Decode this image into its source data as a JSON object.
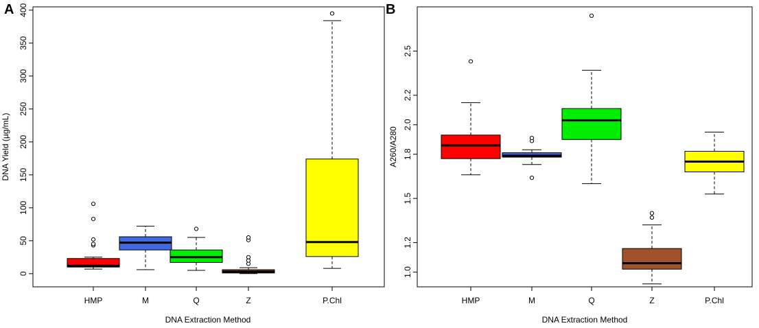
{
  "chart_data": [
    {
      "type": "boxplot",
      "panel_label": "A",
      "xlabel": "DNA Extraction Method",
      "ylabel": "DNA Yield (µg/mL)",
      "ylim": [
        -20,
        405
      ],
      "yticks": [
        0,
        50,
        100,
        150,
        200,
        250,
        300,
        350,
        400
      ],
      "ytick_labels": [
        "0",
        "50",
        "100",
        "150",
        "200",
        "250",
        "300",
        "350",
        "400"
      ],
      "categories": [
        "HMP",
        "M",
        "Q",
        "Z",
        "P.Chl"
      ],
      "colors": [
        "#ff0000",
        "#4169e1",
        "#00ee00",
        "#a0522d",
        "#ffff00"
      ],
      "boxes": [
        {
          "name": "HMP",
          "whisker_low": 7,
          "q1": 10,
          "median": 12,
          "q3": 23,
          "whisker_high": 25,
          "outliers": [
            43,
            45,
            52,
            83,
            106
          ]
        },
        {
          "name": "M",
          "whisker_low": 6,
          "q1": 36,
          "median": 47,
          "q3": 56,
          "whisker_high": 72,
          "outliers": []
        },
        {
          "name": "Q",
          "whisker_low": 5,
          "q1": 17,
          "median": 25,
          "q3": 36,
          "whisker_high": 55,
          "outliers": [
            68
          ]
        },
        {
          "name": "Z",
          "whisker_low": 0,
          "q1": 1,
          "median": 3,
          "q3": 6,
          "whisker_high": 9,
          "outliers": [
            15,
            20,
            25,
            51,
            55
          ]
        },
        {
          "name": "P.Chl",
          "whisker_low": 8,
          "q1": 26,
          "median": 48,
          "q3": 174,
          "whisker_high": 384,
          "outliers": [
            395
          ]
        }
      ]
    },
    {
      "type": "boxplot",
      "panel_label": "B",
      "xlabel": "DNA Extraction Method",
      "ylabel": "A260/A280",
      "ylim": [
        0.9,
        2.8
      ],
      "yticks": [
        1.0,
        1.2,
        1.5,
        1.8,
        2.0,
        2.2,
        2.5
      ],
      "ytick_labels": [
        "1.0",
        "1.2",
        "1.5",
        "1.8",
        "2.0",
        "2.2",
        "2.5"
      ],
      "categories": [
        "HMP",
        "M",
        "Q",
        "Z",
        "P.Chl"
      ],
      "colors": [
        "#ff0000",
        "#4169e1",
        "#00ee00",
        "#a0522d",
        "#ffff00"
      ],
      "boxes": [
        {
          "name": "HMP",
          "whisker_low": 1.66,
          "q1": 1.77,
          "median": 1.86,
          "q3": 1.93,
          "whisker_high": 2.15,
          "outliers": [
            2.43
          ]
        },
        {
          "name": "M",
          "whisker_low": 1.73,
          "q1": 1.78,
          "median": 1.79,
          "q3": 1.81,
          "whisker_high": 1.83,
          "outliers": [
            1.64,
            1.89,
            1.91
          ]
        },
        {
          "name": "Q",
          "whisker_low": 1.6,
          "q1": 1.9,
          "median": 2.03,
          "q3": 2.11,
          "whisker_high": 2.37,
          "outliers": [
            2.74
          ]
        },
        {
          "name": "Z",
          "whisker_low": 0.92,
          "q1": 1.02,
          "median": 1.06,
          "q3": 1.16,
          "whisker_high": 1.32,
          "outliers": [
            1.37,
            1.4
          ]
        },
        {
          "name": "P.Chl",
          "whisker_low": 1.53,
          "q1": 1.68,
          "median": 1.75,
          "q3": 1.82,
          "whisker_high": 1.95,
          "outliers": []
        }
      ]
    }
  ]
}
